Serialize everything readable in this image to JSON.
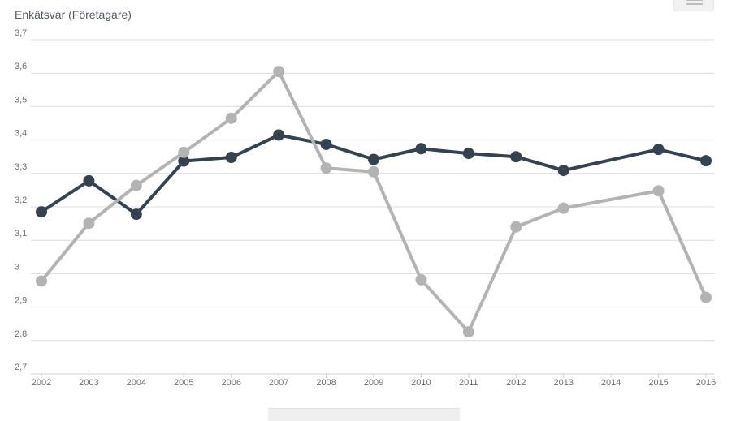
{
  "chart_data": {
    "type": "line",
    "title": "",
    "ylabel": "Enkätsvar (Företagare)",
    "xlabel": "",
    "x": [
      "2002",
      "2003",
      "2004",
      "2005",
      "2006",
      "2007",
      "2008",
      "2009",
      "2010",
      "2011",
      "2012",
      "2013",
      "2014",
      "2015",
      "2016"
    ],
    "ylim": [
      2.7,
      3.7
    ],
    "yticks": [
      "3,7",
      "3,6",
      "3,5",
      "3,4",
      "3,3",
      "3,2",
      "3,1",
      "3",
      "2,9",
      "2,8",
      "2,7"
    ],
    "ytick_values": [
      3.7,
      3.6,
      3.5,
      3.4,
      3.3,
      3.2,
      3.1,
      3.0,
      2.9,
      2.8,
      2.7
    ],
    "grid": true,
    "series": [
      {
        "color": "#354250",
        "values": [
          3.185,
          3.278,
          3.178,
          3.337,
          3.348,
          3.415,
          3.387,
          3.342,
          3.374,
          3.36,
          3.35,
          3.309,
          null,
          3.372,
          3.338
        ]
      },
      {
        "color": "#b3b3b3",
        "values": [
          2.978,
          3.151,
          3.264,
          3.363,
          3.465,
          3.605,
          3.316,
          3.305,
          2.982,
          2.826,
          3.14,
          3.196,
          null,
          3.248,
          2.929
        ]
      }
    ]
  }
}
